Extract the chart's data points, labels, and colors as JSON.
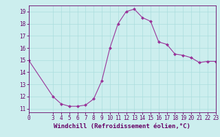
{
  "x": [
    0,
    3,
    4,
    5,
    6,
    7,
    8,
    9,
    10,
    11,
    12,
    13,
    14,
    15,
    16,
    17,
    18,
    19,
    20,
    21,
    22,
    23
  ],
  "y": [
    15.0,
    12.0,
    11.4,
    11.2,
    11.2,
    11.3,
    11.8,
    13.3,
    16.0,
    18.0,
    19.0,
    19.2,
    18.5,
    18.2,
    16.5,
    16.3,
    15.5,
    15.4,
    15.2,
    14.8,
    14.9,
    14.9
  ],
  "line_color": "#993399",
  "marker_color": "#993399",
  "bg_color": "#cceeee",
  "grid_color": "#aadddd",
  "xlabel": "Windchill (Refroidissement éolien,°C)",
  "xlim": [
    0,
    23
  ],
  "ylim": [
    10.7,
    19.5
  ],
  "yticks": [
    11,
    12,
    13,
    14,
    15,
    16,
    17,
    18,
    19
  ],
  "xticks": [
    0,
    3,
    4,
    5,
    6,
    7,
    8,
    9,
    10,
    11,
    12,
    13,
    14,
    15,
    16,
    17,
    18,
    19,
    20,
    21,
    22,
    23
  ],
  "tick_fontsize": 5.5,
  "label_fontsize": 6.5,
  "axis_color": "#660066"
}
